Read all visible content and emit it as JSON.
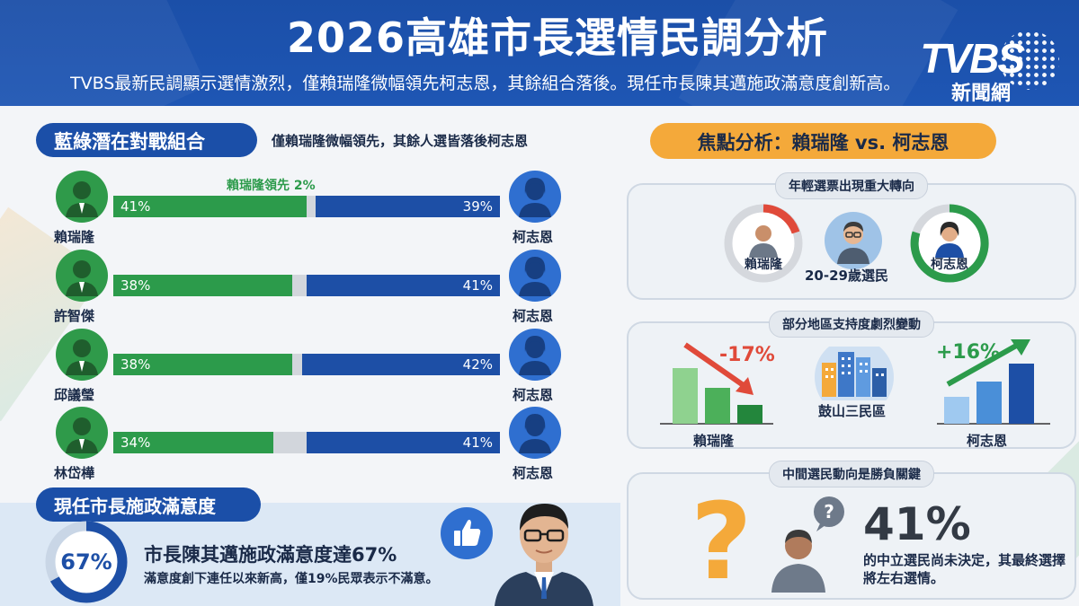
{
  "header": {
    "title": "2026高雄市長選情民調分析",
    "subtitle": "TVBS最新民調顯示選情激烈，僅賴瑞隆微幅領先柯志恩，其餘組合落後。現任市長陳其邁施政滿意度創新高。",
    "logo_brand": "TVBS",
    "logo_sub": "新聞網"
  },
  "matchups": {
    "title": "藍綠潛在對戰組合",
    "note": "僅賴瑞隆微幅領先，其餘人選皆落後柯志恩",
    "lead_note": "賴瑞隆領先 2%",
    "rows": [
      {
        "left_name": "賴瑞隆",
        "left_pct": 41,
        "left_label": "41%",
        "right_name": "柯志恩",
        "right_pct": 39,
        "right_label": "39%"
      },
      {
        "left_name": "許智傑",
        "left_pct": 38,
        "left_label": "38%",
        "right_name": "柯志恩",
        "right_pct": 41,
        "right_label": "41%"
      },
      {
        "left_name": "邱議瑩",
        "left_pct": 38,
        "left_label": "38%",
        "right_name": "柯志恩",
        "right_pct": 42,
        "right_label": "42%"
      },
      {
        "left_name": "林岱樺",
        "left_pct": 34,
        "left_label": "34%",
        "right_name": "柯志恩",
        "right_pct": 41,
        "right_label": "41%"
      }
    ]
  },
  "approval": {
    "title": "現任市長施政滿意度",
    "pct_value": 67,
    "pct_label": "67%",
    "headline": "市長陳其邁施政滿意度達67%",
    "sub": "滿意度創下連任以來新高，僅19%民眾表示不滿意。"
  },
  "focus": {
    "title": "焦點分析：賴瑞隆 vs. 柯志恩",
    "youth": {
      "tag": "年輕選票出現重大轉向",
      "left_name": "賴瑞隆",
      "right_name": "柯志恩",
      "voter_label": "20-29歲選民"
    },
    "region": {
      "tag": "部分地區支持度劇烈變動",
      "left_change": "-17%",
      "right_change": "+16%",
      "left_name": "賴瑞隆",
      "right_name": "柯志恩",
      "region_name": "鼓山三民區"
    },
    "undecided": {
      "tag": "中間選民動向是勝負關鍵",
      "pct": "41%",
      "text": "的中立選民尚未決定，其最終選擇將左右選情。"
    }
  },
  "colors": {
    "green": "#2c9b4b",
    "blue": "#1d4fa6",
    "orange": "#f4a93a",
    "red": "#e04a3a"
  }
}
